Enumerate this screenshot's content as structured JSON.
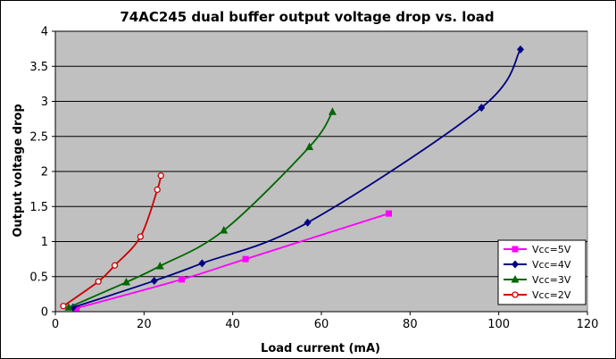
{
  "chart_data": {
    "type": "line",
    "title": "74AC245 dual buffer output voltage drop vs. load",
    "xlabel": "Load current (mA)",
    "ylabel": "Output voltage drop",
    "xlim": [
      0,
      120
    ],
    "ylim": [
      0,
      4
    ],
    "xticks": [
      0,
      20,
      40,
      60,
      80,
      100,
      120
    ],
    "yticks": [
      0,
      0.5,
      1,
      1.5,
      2,
      2.5,
      3,
      3.5,
      4
    ],
    "grid": "horizontal",
    "plot_background": "#c0c0c0",
    "legend_position": "bottom-right",
    "series": [
      {
        "name": "Vcc=5V",
        "color": "#ff00ff",
        "marker": "square",
        "points": [
          [
            4.8,
            0.05
          ],
          [
            28.5,
            0.46
          ],
          [
            42.9,
            0.75
          ],
          [
            75.2,
            1.4
          ]
        ]
      },
      {
        "name": "Vcc=4V",
        "color": "#000080",
        "marker": "diamond",
        "points": [
          [
            4.0,
            0.06
          ],
          [
            22.3,
            0.44
          ],
          [
            33.1,
            0.69
          ],
          [
            56.9,
            1.27
          ],
          [
            96.1,
            2.91
          ],
          [
            104.9,
            3.74
          ]
        ]
      },
      {
        "name": "Vcc=3V",
        "color": "#006600",
        "marker": "triangle",
        "points": [
          [
            3.0,
            0.06
          ],
          [
            16.0,
            0.42
          ],
          [
            23.6,
            0.65
          ],
          [
            38.0,
            1.16
          ],
          [
            57.3,
            2.35
          ],
          [
            62.5,
            2.85
          ]
        ]
      },
      {
        "name": "Vcc=2V",
        "color": "#cc0000",
        "marker": "circle",
        "points": [
          [
            1.8,
            0.08
          ],
          [
            9.7,
            0.43
          ],
          [
            13.4,
            0.66
          ],
          [
            19.2,
            1.07
          ],
          [
            23.0,
            1.74
          ],
          [
            23.8,
            1.94
          ]
        ]
      }
    ]
  }
}
